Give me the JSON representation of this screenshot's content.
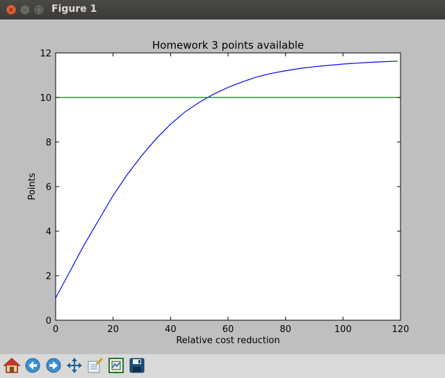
{
  "window": {
    "title": "Figure 1",
    "close_glyph": "×",
    "minimize_glyph": "–",
    "maximize_glyph": "□"
  },
  "toolbar": {
    "buttons": [
      {
        "icon": "home-icon"
      },
      {
        "icon": "back-arrow-icon"
      },
      {
        "icon": "forward-arrow-icon"
      },
      {
        "icon": "pan-icon"
      },
      {
        "icon": "zoom-rect-icon"
      },
      {
        "icon": "configure-subplots-icon"
      },
      {
        "icon": "save-icon"
      }
    ]
  },
  "chart_data": {
    "type": "line",
    "title": "Homework 3 points available",
    "xlabel": "Relative cost reduction",
    "ylabel": "Points",
    "xlim": [
      0,
      120
    ],
    "ylim": [
      0,
      12
    ],
    "xticks": [
      "0",
      "20",
      "40",
      "60",
      "80",
      "100",
      "120"
    ],
    "yticks": [
      "0",
      "2",
      "4",
      "6",
      "8",
      "10",
      "12"
    ],
    "grid": false,
    "series": [
      {
        "color": "#0000ff",
        "x": [
          0,
          5,
          10,
          15,
          20,
          25,
          30,
          35,
          40,
          45,
          50,
          55,
          60,
          65,
          70,
          75,
          80,
          85,
          90,
          95,
          100,
          105,
          110,
          115,
          119
        ],
        "y": [
          1.0,
          2.2,
          3.4,
          4.5,
          5.6,
          6.55,
          7.4,
          8.15,
          8.8,
          9.35,
          9.78,
          10.15,
          10.45,
          10.7,
          10.92,
          11.08,
          11.2,
          11.3,
          11.38,
          11.44,
          11.5,
          11.54,
          11.58,
          11.61,
          11.63
        ]
      },
      {
        "color": "#008000",
        "x": [
          0,
          120
        ],
        "y": [
          10,
          10
        ]
      }
    ]
  }
}
